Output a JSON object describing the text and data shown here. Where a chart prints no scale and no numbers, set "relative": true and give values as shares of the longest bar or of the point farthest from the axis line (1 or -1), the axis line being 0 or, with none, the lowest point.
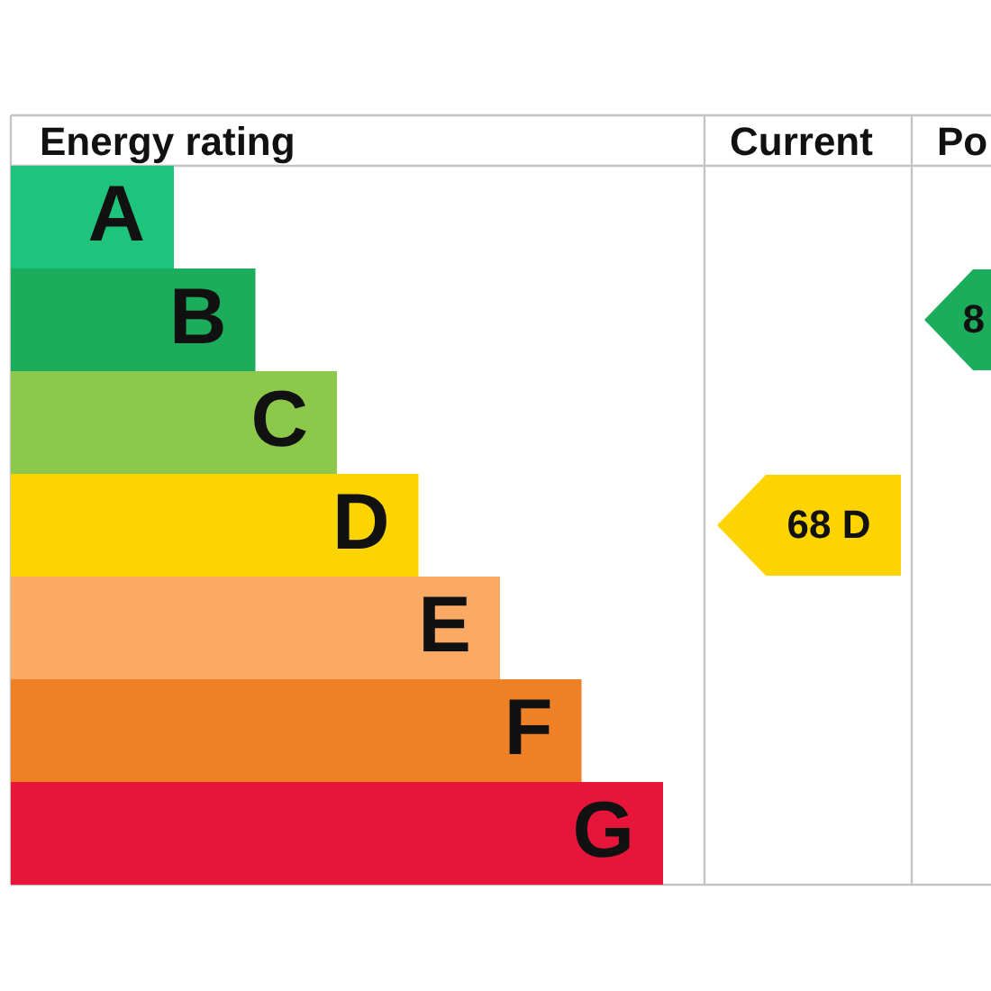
{
  "chart_data": {
    "type": "bar",
    "orientation": "horizontal",
    "relative": true,
    "title": "Energy rating",
    "categories": [
      "A",
      "B",
      "C",
      "D",
      "E",
      "F",
      "G"
    ],
    "values": [
      0.25,
      0.375,
      0.5,
      0.625,
      0.75,
      0.875,
      1
    ],
    "colors": [
      "#1ec47c",
      "#1bad5c",
      "#8cc94a",
      "#fed400",
      "#fbaa66",
      "#ee8126",
      "#e8153b"
    ],
    "annotations": [
      "Current",
      "Po",
      "68 D",
      "8"
    ]
  }
}
